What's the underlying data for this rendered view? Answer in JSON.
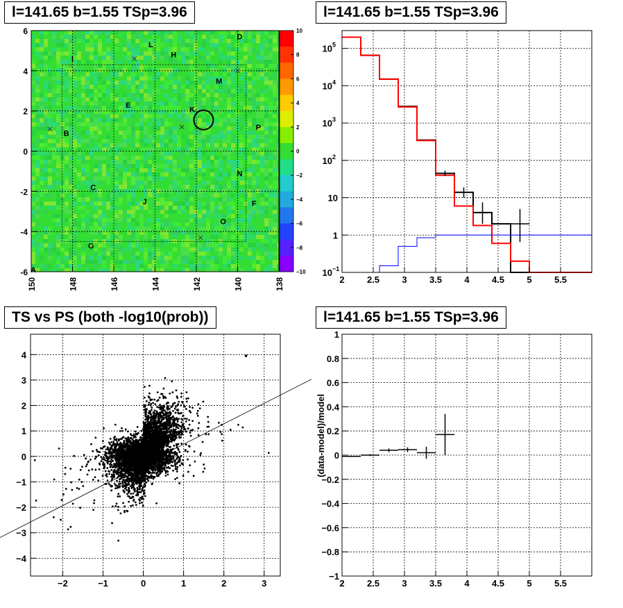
{
  "chart_data": [
    {
      "type": "heatmap",
      "title": "l=141.65 b=1.55 TSp=3.96",
      "xlim": [
        150,
        138
      ],
      "ylim": [
        -6,
        6
      ],
      "xticks": [
        "150",
        "148",
        "146",
        "144",
        "142",
        "140",
        "138"
      ],
      "yticks": [
        "-6",
        "-4",
        "-2",
        "0",
        "2",
        "4",
        "6"
      ],
      "colorbar": {
        "range": [
          -10,
          10
        ],
        "ticks": [
          "10",
          "8",
          "6",
          "4",
          "2",
          "0",
          "−2",
          "−4",
          "−6",
          "−8",
          "−10"
        ]
      },
      "grid": true,
      "labels": [
        {
          "text": "A",
          "x": 149.9,
          "y": -5.9
        },
        {
          "text": "B",
          "x": 148.3,
          "y": 0.9
        },
        {
          "text": "C",
          "x": 147.0,
          "y": -1.8
        },
        {
          "text": "D",
          "x": 139.9,
          "y": 5.7
        },
        {
          "text": "E",
          "x": 145.3,
          "y": 2.3
        },
        {
          "text": "F",
          "x": 139.2,
          "y": -2.6
        },
        {
          "text": "G",
          "x": 147.1,
          "y": -4.7
        },
        {
          "text": "H",
          "x": 143.1,
          "y": 4.8
        },
        {
          "text": "I",
          "x": 148.0,
          "y": 4.6
        },
        {
          "text": "J",
          "x": 144.5,
          "y": -2.5
        },
        {
          "text": "K",
          "x": 142.2,
          "y": 2.1
        },
        {
          "text": "L",
          "x": 144.2,
          "y": 5.3
        },
        {
          "text": "M",
          "x": 140.9,
          "y": 3.5
        },
        {
          "text": "N",
          "x": 139.9,
          "y": -1.1
        },
        {
          "text": "O",
          "x": 140.7,
          "y": -3.5
        },
        {
          "text": "P",
          "x": 139.0,
          "y": 1.2
        }
      ],
      "source_circle": {
        "l": 141.65,
        "b": 1.55
      }
    },
    {
      "type": "line",
      "title": "l=141.65 b=1.55 TSp=3.96",
      "xlim": [
        2,
        6
      ],
      "ylim": [
        0.1,
        300000
      ],
      "yscale": "log",
      "xticks": [
        "2",
        "2.5",
        "3",
        "3.5",
        "4",
        "4.5",
        "5",
        "5.5"
      ],
      "yticks": [
        "10^{-1}",
        "1",
        "10",
        "10^{2}",
        "10^{3}",
        "10^{4}",
        "10^{5}"
      ],
      "grid": true,
      "series": [
        {
          "style": "step",
          "color": "#000000",
          "edges": [
            2,
            2.3,
            2.6,
            2.9,
            3.2,
            3.5,
            3.8,
            4.1,
            4.4,
            4.7,
            5,
            6
          ],
          "values": [
            200000,
            65000,
            15000,
            2800,
            350,
            45,
            14,
            4,
            2,
            0.1,
            0.1
          ]
        },
        {
          "style": "step",
          "color": "#ff0000",
          "edges": [
            2,
            2.3,
            2.6,
            2.9,
            3.2,
            3.5,
            3.8,
            4.1,
            4.4,
            4.7,
            5,
            6
          ],
          "values": [
            200000,
            65000,
            15000,
            2700,
            340,
            40,
            6,
            1.8,
            0.6,
            0.2,
            0.1
          ]
        },
        {
          "style": "step",
          "color": "#0000ff",
          "edges": [
            2,
            2.6,
            2.9,
            3.2,
            3.5,
            3.8,
            4.1,
            6
          ],
          "values": [
            0.1,
            0.15,
            0.5,
            0.85,
            1.0,
            1.0,
            1.0
          ]
        }
      ],
      "points": [
        {
          "x": 3.65,
          "y": 45,
          "xerr": 0.15,
          "ylo": 38,
          "yhi": 53
        },
        {
          "x": 3.95,
          "y": 14,
          "xerr": 0.15,
          "ylo": 10,
          "yhi": 19
        },
        {
          "x": 4.25,
          "y": 4,
          "xerr": 0.15,
          "ylo": 2,
          "yhi": 7.5
        },
        {
          "x": 4.85,
          "y": 2,
          "xerr": 0.15,
          "ylo": 0.65,
          "yhi": 5
        }
      ]
    },
    {
      "type": "scatter",
      "title": "TS vs PS (both -log10(prob))",
      "xlim": [
        -2.8,
        3.4
      ],
      "ylim": [
        -4.7,
        4.8
      ],
      "xticks": [
        "−2",
        "−1",
        "0",
        "1",
        "2",
        "3"
      ],
      "yticks": [
        "−4",
        "−3",
        "−2",
        "−1",
        "0",
        "1",
        "2",
        "3",
        "4"
      ],
      "grid": true,
      "fit_line": {
        "x1": -3.7,
        "y1": -3.3,
        "x2": 4.2,
        "y2": 3.05
      },
      "highlight_point": {
        "x": 2.55,
        "y": 3.95
      }
    },
    {
      "type": "scatter",
      "title": "l=141.65 b=1.55 TSp=3.96",
      "ylabel": "(data-model)/model",
      "xlim": [
        2,
        6
      ],
      "ylim": [
        -1,
        1
      ],
      "xticks": [
        "2",
        "2.5",
        "3",
        "3.5",
        "4",
        "4.5",
        "5",
        "5.5"
      ],
      "yticks": [
        "−1",
        "−0.8",
        "−0.6",
        "−0.4",
        "−0.2",
        "0",
        "0.2",
        "0.4",
        "0.6",
        "0.8",
        "1"
      ],
      "grid": true,
      "points": [
        {
          "x": 2.15,
          "y": -0.01,
          "xerr": 0.15,
          "yerr": 0.005
        },
        {
          "x": 2.45,
          "y": 0.0,
          "xerr": 0.15,
          "yerr": 0.008
        },
        {
          "x": 2.75,
          "y": 0.04,
          "xerr": 0.15,
          "yerr": 0.015
        },
        {
          "x": 3.05,
          "y": 0.045,
          "xerr": 0.15,
          "yerr": 0.02
        },
        {
          "x": 3.35,
          "y": 0.02,
          "xerr": 0.15,
          "yerr": 0.05
        },
        {
          "x": 3.65,
          "y": 0.17,
          "xerr": 0.15,
          "yerr": 0.17
        }
      ]
    }
  ]
}
